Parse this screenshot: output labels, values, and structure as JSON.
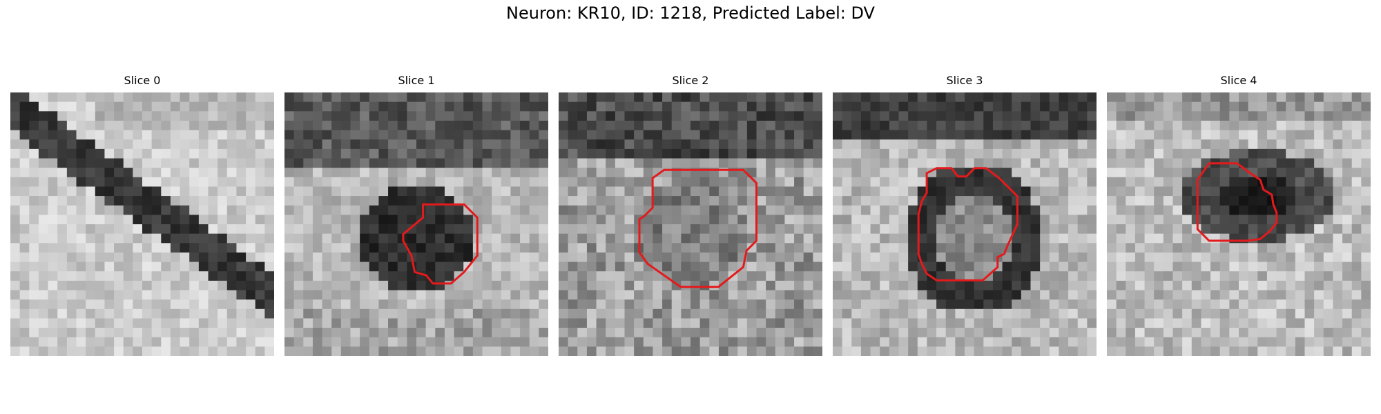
{
  "title": "Neuron: KR10, ID: 1218, Predicted Label: DV",
  "slices": [
    {
      "label": "Slice 0",
      "has_contour": false
    },
    {
      "label": "Slice 1",
      "has_contour": true
    },
    {
      "label": "Slice 2",
      "has_contour": true
    },
    {
      "label": "Slice 3",
      "has_contour": true
    },
    {
      "label": "Slice 4",
      "has_contour": true
    }
  ],
  "colors": {
    "contour": "#e41a1c"
  }
}
